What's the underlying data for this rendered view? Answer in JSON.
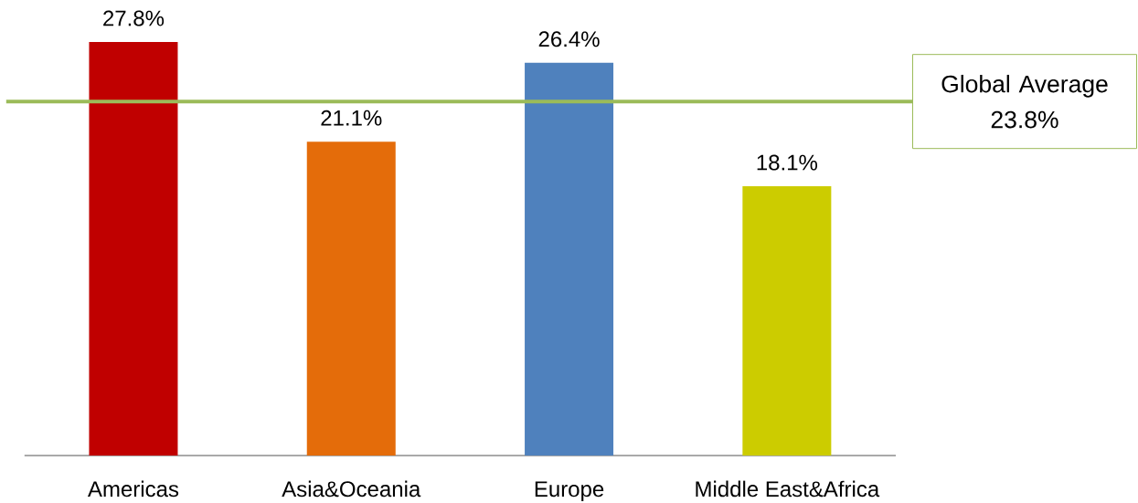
{
  "chart_data": {
    "type": "bar",
    "categories": [
      "Americas",
      "Asia&Oceania",
      "Europe",
      "Middle East&Africa"
    ],
    "values": [
      27.8,
      21.1,
      26.4,
      18.1
    ],
    "colors": [
      "#c00000",
      "#e46c0a",
      "#4f81bd",
      "#cccc00"
    ],
    "value_labels": [
      "27.8%",
      "21.1%",
      "26.4%",
      "18.1%"
    ],
    "tick_labels": "x",
    "ref_lines": [
      {
        "axis": "y",
        "value": 23.8,
        "label": "Global Average 23.8%",
        "color": "#9bbb59"
      }
    ]
  }
}
